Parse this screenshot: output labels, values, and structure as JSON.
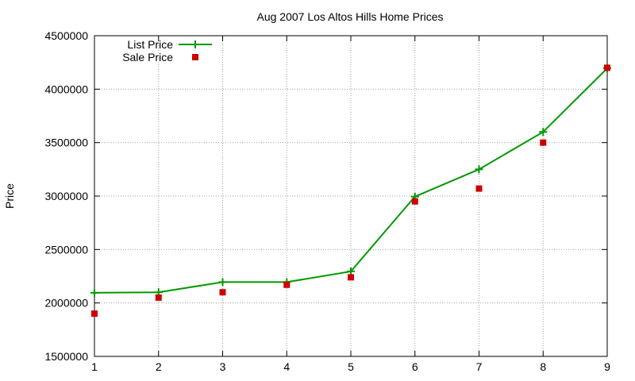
{
  "chart_data": {
    "type": "line",
    "title": "Aug 2007 Los Altos Hills Home Prices",
    "xlabel": "",
    "ylabel": "Price",
    "x": [
      1,
      2,
      3,
      4,
      5,
      6,
      7,
      8,
      9
    ],
    "xlim": [
      1,
      9
    ],
    "ylim": [
      1500000,
      4500000
    ],
    "xticks": [
      "1",
      "2",
      "3",
      "4",
      "5",
      "6",
      "7",
      "8",
      "9"
    ],
    "yticks": [
      "1500000",
      "2000000",
      "2500000",
      "3000000",
      "3500000",
      "4000000",
      "4500000"
    ],
    "grid": true,
    "legend_position": "top-left",
    "series": [
      {
        "name": "List Price",
        "style": "line+cross",
        "color": "#009900",
        "values": [
          2095000,
          2100000,
          2195000,
          2195000,
          2295000,
          2995000,
          3250000,
          3600000,
          4195000
        ]
      },
      {
        "name": "Sale Price",
        "style": "square",
        "color": "#cc0000",
        "values": [
          1900000,
          2050000,
          2100000,
          2170000,
          2240000,
          2950000,
          3070000,
          3500000,
          4200000
        ]
      }
    ]
  }
}
